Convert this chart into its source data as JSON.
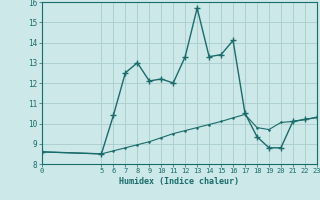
{
  "xlabel": "Humidex (Indice chaleur)",
  "xlim": [
    0,
    23
  ],
  "ylim": [
    8,
    16
  ],
  "yticks": [
    8,
    9,
    10,
    11,
    12,
    13,
    14,
    15,
    16
  ],
  "xticks": [
    0,
    5,
    6,
    7,
    8,
    9,
    10,
    11,
    12,
    13,
    14,
    15,
    16,
    17,
    18,
    19,
    20,
    21,
    22,
    23
  ],
  "bg_color": "#cce8e8",
  "grid_color": "#aacccc",
  "line_color": "#1a6b6b",
  "curve1_x": [
    0,
    5,
    6,
    7,
    8,
    9,
    10,
    11,
    12,
    13,
    14,
    15,
    16,
    17,
    18,
    19,
    20,
    21,
    22,
    23
  ],
  "curve1_y": [
    8.6,
    8.5,
    10.4,
    12.5,
    13.0,
    12.1,
    12.2,
    12.0,
    13.3,
    15.7,
    13.3,
    13.4,
    14.1,
    10.5,
    9.35,
    8.8,
    8.8,
    10.1,
    10.2,
    10.3
  ],
  "curve2_x": [
    0,
    5,
    6,
    7,
    8,
    9,
    10,
    11,
    12,
    13,
    14,
    15,
    16,
    17,
    18,
    19,
    20,
    21,
    22,
    23
  ],
  "curve2_y": [
    8.6,
    8.5,
    8.65,
    8.8,
    8.95,
    9.1,
    9.3,
    9.5,
    9.65,
    9.8,
    9.95,
    10.1,
    10.28,
    10.45,
    9.8,
    9.7,
    10.05,
    10.1,
    10.2,
    10.3
  ]
}
